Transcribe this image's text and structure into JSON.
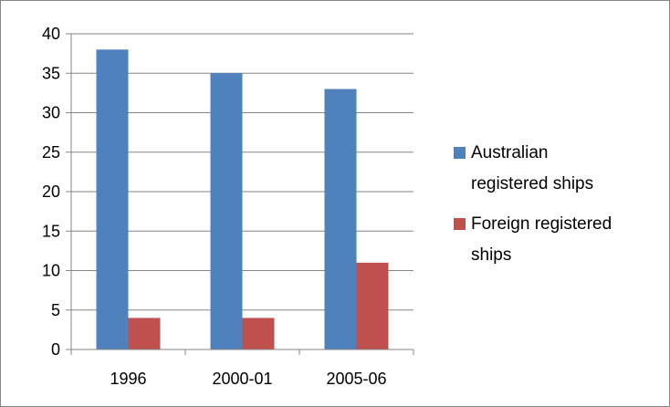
{
  "chart_data": {
    "type": "bar",
    "categories": [
      "1996",
      "2000-01",
      "2005-06"
    ],
    "series": [
      {
        "name": "Australian registered ships",
        "values": [
          38,
          35,
          33
        ],
        "color": "#4F81BD"
      },
      {
        "name": "Foreign registered ships",
        "values": [
          4,
          4,
          11
        ],
        "color": "#C0504D"
      }
    ],
    "ylim": [
      0,
      40
    ],
    "yticks": [
      0,
      5,
      10,
      15,
      20,
      25,
      30,
      35,
      40
    ],
    "grid": true,
    "legend_position": "right",
    "legend_lines": [
      [
        "Australian",
        "registered ships"
      ],
      [
        "Foreign registered",
        "ships"
      ]
    ],
    "title": "",
    "xlabel": "",
    "ylabel": ""
  }
}
